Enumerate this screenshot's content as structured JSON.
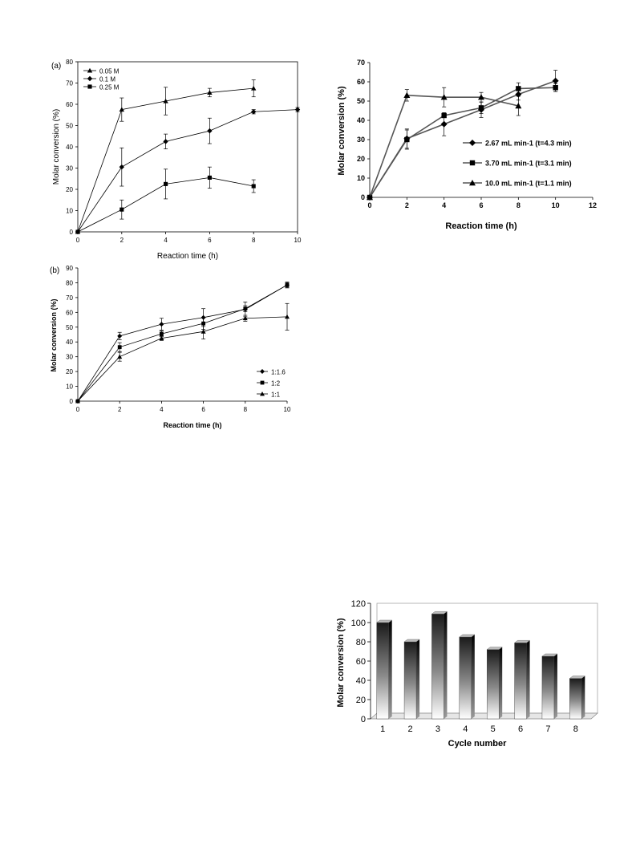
{
  "chart_data": [
    {
      "id": "a",
      "panel_label": "(a)",
      "type": "line",
      "xlabel": "Reaction time (h)",
      "ylabel": "Molar conversion (%)",
      "xlim": [
        0,
        10
      ],
      "ylim": [
        0,
        80
      ],
      "xticks": [
        "0",
        "2",
        "4",
        "6",
        "8",
        "10"
      ],
      "yticks": [
        "0",
        "10",
        "20",
        "30",
        "40",
        "50",
        "60",
        "70",
        "80"
      ],
      "legend_position": "top-left",
      "series": [
        {
          "name": "0.05 M",
          "marker": "triangle",
          "x": [
            0,
            2,
            4,
            6,
            8
          ],
          "y": [
            0,
            57.5,
            61.5,
            65.5,
            67.5
          ],
          "err": [
            0,
            5.5,
            6.5,
            2,
            4
          ]
        },
        {
          "name": "0.1 M",
          "marker": "diamond",
          "x": [
            0,
            2,
            4,
            6,
            8,
            10
          ],
          "y": [
            0,
            30.5,
            42.5,
            47.5,
            56.5,
            57.5
          ],
          "err": [
            0,
            9,
            3.5,
            6,
            1,
            1
          ]
        },
        {
          "name": "0.25 M",
          "marker": "square",
          "x": [
            0,
            2,
            4,
            6,
            8
          ],
          "y": [
            0,
            10.5,
            22.5,
            25.5,
            21.5
          ],
          "err": [
            0,
            4.5,
            7,
            5,
            3
          ]
        }
      ]
    },
    {
      "id": "c",
      "type": "line",
      "xlabel": "Reaction time (h)",
      "ylabel": "Molar conversion (%)",
      "xlim": [
        0,
        12
      ],
      "ylim": [
        0,
        70
      ],
      "xticks": [
        "0",
        "2",
        "4",
        "6",
        "8",
        "10",
        "12"
      ],
      "yticks": [
        "0",
        "10",
        "20",
        "30",
        "40",
        "50",
        "60",
        "70"
      ],
      "legend_position": "bottom-right",
      "series": [
        {
          "name": "2.67 mL min-1 (t=4.3 min)",
          "marker": "diamond",
          "x": [
            0,
            2,
            4,
            6,
            8,
            10
          ],
          "y": [
            0,
            30.5,
            38,
            45.5,
            53.5,
            60.5
          ],
          "err": [
            0,
            5,
            6,
            4,
            3,
            5.5
          ]
        },
        {
          "name": "3.70 mL min-1 (t=3.1 min)",
          "marker": "square",
          "x": [
            0,
            2,
            4,
            6,
            8,
            10
          ],
          "y": [
            0,
            30,
            42.5,
            46.5,
            56.5,
            57
          ],
          "err": [
            0,
            5,
            0,
            3,
            3,
            2
          ]
        },
        {
          "name": "10.0 mL min-1 (t=1.1 min)",
          "marker": "triangle",
          "x": [
            0,
            2,
            4,
            6,
            8
          ],
          "y": [
            0,
            53,
            52,
            52,
            47.5
          ],
          "err": [
            0,
            3,
            5,
            2.5,
            5
          ]
        }
      ]
    },
    {
      "id": "b",
      "panel_label": "(b)",
      "type": "line",
      "xlabel": "Reaction time (h)",
      "ylabel": "Molar conversion (%)",
      "xlim": [
        0,
        10
      ],
      "ylim": [
        0,
        90
      ],
      "xticks": [
        "0",
        "2",
        "4",
        "6",
        "8",
        "10"
      ],
      "yticks": [
        "0",
        "10",
        "20",
        "30",
        "40",
        "50",
        "60",
        "70",
        "80",
        "90"
      ],
      "legend_position": "bottom-right",
      "series": [
        {
          "name": "1:1.6",
          "marker": "diamond",
          "x": [
            0,
            2,
            4,
            6,
            8,
            10
          ],
          "y": [
            0,
            44,
            52,
            56.5,
            62,
            78.5
          ],
          "err": [
            0,
            2.5,
            4,
            6,
            5,
            2
          ]
        },
        {
          "name": "1:2",
          "marker": "square",
          "x": [
            0,
            2,
            4,
            6,
            8,
            10
          ],
          "y": [
            0,
            36.5,
            45.5,
            52.5,
            62.5,
            78.5
          ],
          "err": [
            0,
            3,
            2,
            4,
            2,
            1.5
          ]
        },
        {
          "name": "1:1",
          "marker": "triangle",
          "x": [
            0,
            2,
            4,
            6,
            8,
            10
          ],
          "y": [
            0,
            30,
            42.5,
            47,
            56,
            57
          ],
          "err": [
            0,
            3,
            1.5,
            5,
            2,
            9
          ]
        }
      ]
    },
    {
      "id": "d",
      "type": "bar",
      "xlabel": "Cycle number",
      "ylabel": "Molar conversion (%)",
      "ylim": [
        0,
        120
      ],
      "yticks": [
        "0",
        "20",
        "40",
        "60",
        "80",
        "100",
        "120"
      ],
      "categories": [
        "1",
        "2",
        "3",
        "4",
        "5",
        "6",
        "7",
        "8"
      ],
      "values": [
        100,
        80,
        109,
        85,
        72,
        79,
        65,
        42
      ]
    }
  ]
}
